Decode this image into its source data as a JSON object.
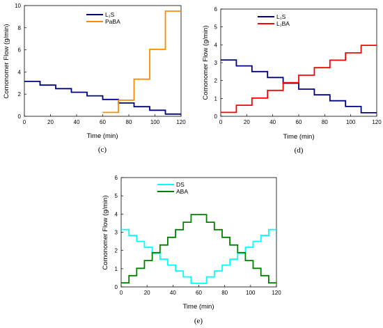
{
  "chart_data": [
    {
      "type": "line",
      "step": true,
      "panel_label": "(c)",
      "xlabel": "Time (min)",
      "ylabel": "Comonomer Flow (g/min)",
      "xlim": [
        0,
        120
      ],
      "ylim": [
        0,
        10
      ],
      "xticks": [
        "0",
        "20",
        "40",
        "60",
        "80",
        "100",
        "120"
      ],
      "yticks": [
        "0",
        "2",
        "4",
        "6",
        "8",
        "10"
      ],
      "grid": false,
      "legend": "top-center",
      "series": [
        {
          "name": "L₁S",
          "color": "#000080",
          "x": [
            0,
            12,
            24,
            36,
            48,
            60,
            72,
            84,
            96,
            108,
            120
          ],
          "y": [
            3.15,
            2.82,
            2.5,
            2.17,
            1.85,
            1.52,
            1.2,
            0.87,
            0.55,
            0.2,
            0.2
          ]
        },
        {
          "name": "PaBA",
          "color": "#FF8C00",
          "x": [
            60,
            72,
            84,
            96,
            108,
            120
          ],
          "y": [
            0.35,
            1.45,
            3.35,
            6.05,
            9.5,
            9.5
          ]
        }
      ]
    },
    {
      "type": "line",
      "step": true,
      "panel_label": "(d)",
      "xlabel": "Time (min)",
      "ylabel": "Comonomer Flow (g/min)",
      "xlim": [
        0,
        120
      ],
      "ylim": [
        0,
        6
      ],
      "xticks": [
        "0",
        "20",
        "40",
        "60",
        "80",
        "100",
        "120"
      ],
      "yticks": [
        "0",
        "1",
        "2",
        "3",
        "4",
        "5",
        "6"
      ],
      "grid": false,
      "legend": "top-center",
      "series": [
        {
          "name": "L₁S",
          "color": "#000080",
          "x": [
            0,
            12,
            24,
            36,
            48,
            60,
            72,
            84,
            96,
            108,
            120
          ],
          "y": [
            3.15,
            2.82,
            2.5,
            2.17,
            1.85,
            1.52,
            1.2,
            0.87,
            0.55,
            0.2,
            0.2
          ]
        },
        {
          "name": "L₁BA",
          "color": "#FF0000",
          "x": [
            0,
            12,
            24,
            36,
            48,
            60,
            72,
            84,
            96,
            108,
            120
          ],
          "y": [
            0.22,
            0.62,
            1.02,
            1.45,
            1.88,
            2.3,
            2.72,
            3.14,
            3.55,
            3.97,
            3.97
          ]
        }
      ]
    },
    {
      "type": "line",
      "step": true,
      "panel_label": "(e)",
      "xlabel": "Time (min)",
      "ylabel": "Comonomer Flow (g/min)",
      "xlim": [
        0,
        120
      ],
      "ylim": [
        0,
        6
      ],
      "xticks": [
        "0",
        "20",
        "40",
        "60",
        "80",
        "100",
        "120"
      ],
      "yticks": [
        "0",
        "1",
        "2",
        "3",
        "4",
        "5",
        "6"
      ],
      "grid": false,
      "legend": "top-center",
      "series": [
        {
          "name": "DS",
          "color": "#00FFFF",
          "x": [
            0,
            6,
            12,
            18,
            24,
            30,
            36,
            42,
            48,
            54,
            60,
            66,
            72,
            78,
            84,
            90,
            96,
            102,
            108,
            114,
            120
          ],
          "y": [
            3.15,
            2.82,
            2.5,
            2.17,
            1.85,
            1.52,
            1.2,
            0.87,
            0.55,
            0.2,
            0.2,
            0.55,
            0.87,
            1.2,
            1.52,
            1.85,
            2.17,
            2.5,
            2.82,
            3.15,
            3.15
          ]
        },
        {
          "name": "ABA",
          "color": "#008000",
          "x": [
            0,
            6,
            12,
            18,
            24,
            30,
            36,
            42,
            48,
            54,
            60,
            66,
            72,
            78,
            84,
            90,
            96,
            102,
            108,
            114,
            120
          ],
          "y": [
            0.22,
            0.62,
            1.02,
            1.45,
            1.88,
            2.3,
            2.72,
            3.14,
            3.55,
            3.97,
            3.97,
            3.55,
            3.14,
            2.72,
            2.3,
            1.88,
            1.45,
            1.02,
            0.62,
            0.22,
            0.22
          ]
        }
      ]
    }
  ]
}
